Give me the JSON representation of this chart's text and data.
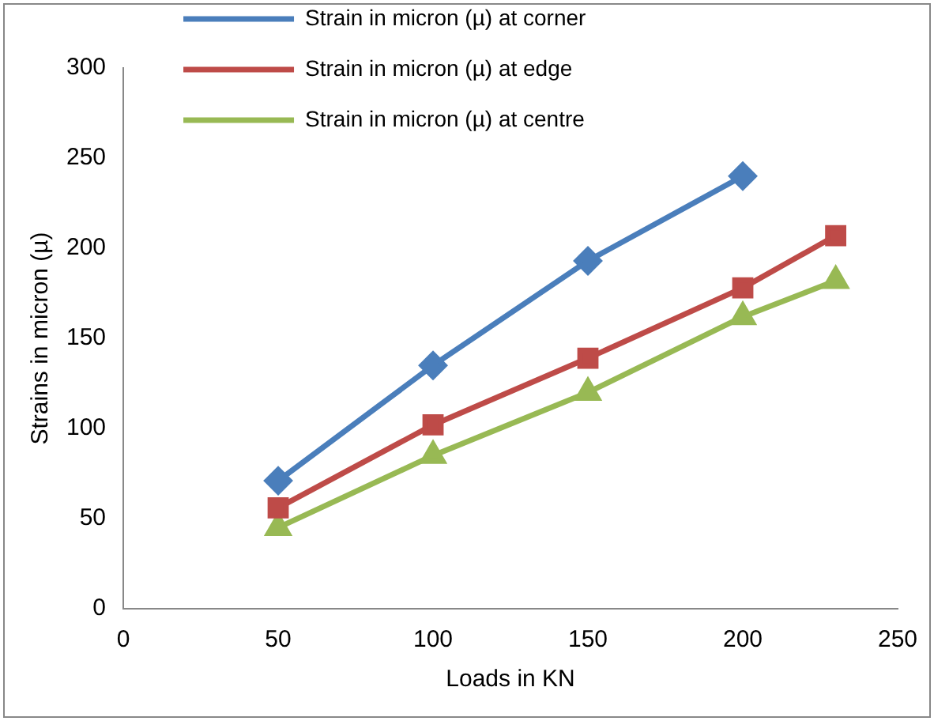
{
  "chart_data": {
    "type": "line",
    "xlabel": "Loads in KN",
    "ylabel": "Strains in micron (µ)",
    "xlim": [
      0,
      250
    ],
    "xticks": [
      0,
      50,
      100,
      150,
      200,
      250
    ],
    "ylim": [
      0,
      300
    ],
    "yticks": [
      0,
      50,
      100,
      150,
      200,
      250,
      300
    ],
    "grid": false,
    "legend": "top left",
    "line_style": "solid",
    "series": [
      {
        "name": "Strain in micron (µ) at corner",
        "color": "#4a7ebb",
        "marker": "diamond",
        "x": [
          50,
          100,
          150,
          200
        ],
        "values": [
          71,
          135,
          193,
          240
        ]
      },
      {
        "name": "Strain in micron (µ) at edge",
        "color": "#be4b48",
        "marker": "square",
        "x": [
          50,
          100,
          150,
          200,
          230
        ],
        "values": [
          56,
          102,
          139,
          178,
          207
        ]
      },
      {
        "name": "Strain in micron (µ) at centre",
        "color": "#98b954",
        "marker": "triangle",
        "x": [
          50,
          100,
          150,
          200,
          230
        ],
        "values": [
          45,
          85,
          120,
          162,
          182
        ]
      }
    ]
  }
}
